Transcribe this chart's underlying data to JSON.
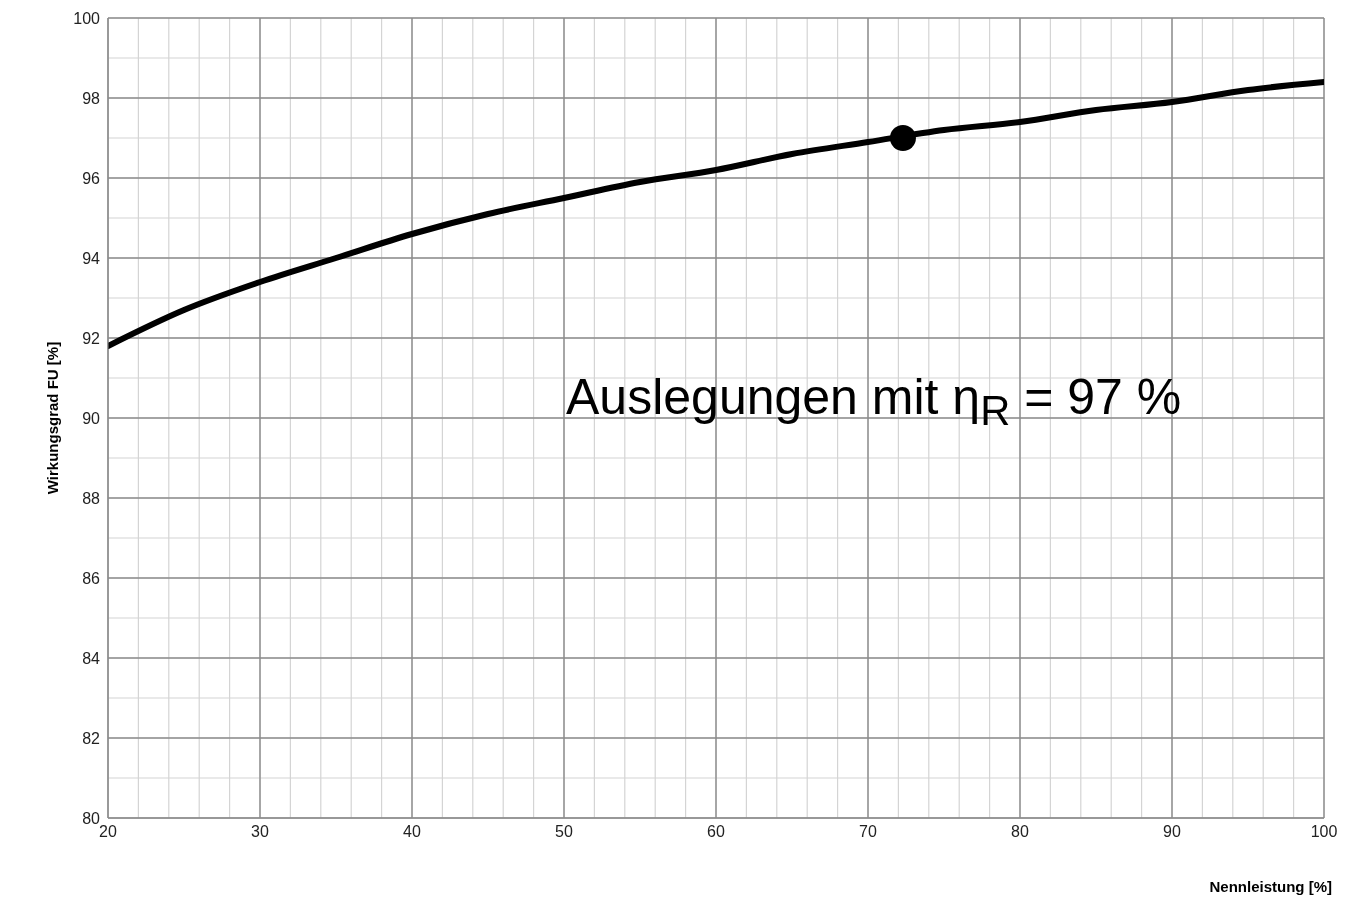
{
  "chart_data": {
    "type": "line",
    "xlabel": "Nennleistung [%]",
    "ylabel": "Wirkungsgrad FU [%]",
    "annotations": [
      "Auslegungen mit η$_{R}$ = 97 %"
    ],
    "xlim": [
      20,
      100
    ],
    "ylim": [
      80,
      100
    ],
    "xticks": [
      20,
      {
        "value": 22,
        "label": null
      },
      {
        "value": 24,
        "label": null
      },
      {
        "value": 26,
        "label": null
      },
      {
        "value": 28,
        "label": null
      },
      30,
      {
        "value": 32,
        "label": null
      },
      {
        "value": 34,
        "label": null
      },
      {
        "value": 36,
        "label": null
      },
      {
        "value": 38,
        "label": null
      },
      40,
      {
        "value": 42,
        "label": null
      },
      {
        "value": 44,
        "label": null
      },
      {
        "value": 46,
        "label": null
      },
      {
        "value": 48,
        "label": null
      },
      50,
      {
        "value": 52,
        "label": null
      },
      {
        "value": 54,
        "label": null
      },
      {
        "value": 56,
        "label": null
      },
      {
        "value": 58,
        "label": null
      },
      60,
      {
        "value": 62,
        "label": null
      },
      {
        "value": 64,
        "label": null
      },
      {
        "value": 66,
        "label": null
      },
      {
        "value": 68,
        "label": null
      },
      70,
      {
        "value": 72,
        "label": null
      },
      {
        "value": 74,
        "label": null
      },
      {
        "value": 76,
        "label": null
      },
      {
        "value": 78,
        "label": null
      },
      80,
      {
        "value": 82,
        "label": null
      },
      {
        "value": 84,
        "label": null
      },
      {
        "value": 86,
        "label": null
      },
      {
        "value": 88,
        "label": null
      },
      90,
      {
        "value": 92,
        "label": null
      },
      {
        "value": 94,
        "label": null
      },
      {
        "value": 96,
        "label": null
      },
      {
        "value": 98,
        "label": null
      },
      100
    ],
    "yticks": [
      80,
      {
        "value": 81,
        "label": null
      },
      82,
      {
        "value": 83,
        "label": null
      },
      84,
      {
        "value": 85,
        "label": null
      },
      86,
      {
        "value": 87,
        "label": null
      },
      88,
      {
        "value": 89,
        "label": null
      },
      90,
      {
        "value": 91,
        "label": null
      },
      92,
      {
        "value": 93,
        "label": null
      },
      94,
      {
        "value": 95,
        "label": null
      },
      96,
      {
        "value": 97,
        "label": null
      },
      98,
      {
        "value": 99,
        "label": null
      },
      100
    ],
    "grid": true,
    "series": [
      {
        "color": "#000000",
        "marker": "none",
        "x": [
          20,
          25,
          30,
          35,
          40,
          45,
          50,
          55,
          60,
          65,
          70,
          75,
          80,
          85,
          90,
          95,
          100
        ],
        "values": [
          91.8,
          92.7,
          93.4,
          94.0,
          94.6,
          95.1,
          95.5,
          95.9,
          96.2,
          96.6,
          96.9,
          97.2,
          97.4,
          97.7,
          97.9,
          98.2,
          98.4
        ]
      },
      {
        "type": "scatter",
        "color": "#000000",
        "marker": "circle",
        "x": [
          72.3
        ],
        "values": [
          97.0
        ]
      }
    ]
  }
}
